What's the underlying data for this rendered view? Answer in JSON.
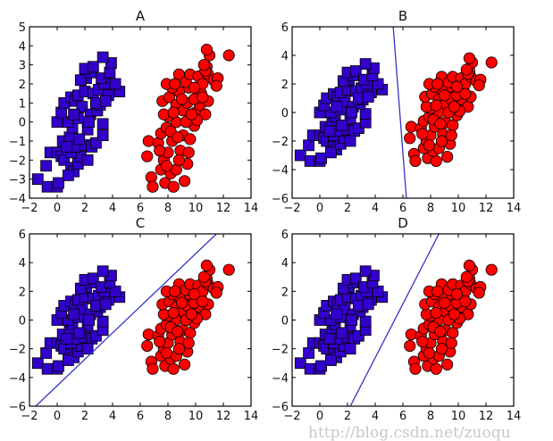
{
  "watermark": "http://blog.csdn.net/zuoqu",
  "colors": {
    "class1": "#3300cc",
    "class2": "#ff0000",
    "line": "#3333cc"
  },
  "clusters": {
    "blue_squares": [
      [
        -1.4,
        -3
      ],
      [
        -0.7,
        -3.4
      ],
      [
        0,
        -3.4
      ],
      [
        0.1,
        -3.2
      ],
      [
        -0.8,
        -2.3
      ],
      [
        -0.5,
        -1.6
      ],
      [
        0,
        -1.6
      ],
      [
        0.3,
        -1.8
      ],
      [
        0.5,
        -2
      ],
      [
        1,
        -2.4
      ],
      [
        1.2,
        -2.6
      ],
      [
        0.8,
        -2.8
      ],
      [
        1.5,
        -2.2
      ],
      [
        1.7,
        -1.8
      ],
      [
        1,
        -1.6
      ],
      [
        0.4,
        -1.0
      ],
      [
        0.9,
        -0.8
      ],
      [
        1.3,
        -1.3
      ],
      [
        2,
        -1.2
      ],
      [
        2.5,
        -1.3
      ],
      [
        2.8,
        -1.1
      ],
      [
        1.1,
        -0.3
      ],
      [
        0,
        0
      ],
      [
        0.8,
        0
      ],
      [
        1.5,
        0.2
      ],
      [
        2.2,
        -0.4
      ],
      [
        3.3,
        -0.7
      ],
      [
        3.3,
        -0.1
      ],
      [
        0.3,
        0.5
      ],
      [
        0.5,
        1.0
      ],
      [
        1.0,
        1.3
      ],
      [
        1.3,
        1.1
      ],
      [
        1.8,
        0.8
      ],
      [
        2.4,
        0.4
      ],
      [
        2.9,
        0.6
      ],
      [
        3.1,
        0.9
      ],
      [
        1.5,
        1.4
      ],
      [
        2.0,
        1.6
      ],
      [
        2.6,
        1.5
      ],
      [
        3.0,
        1.7
      ],
      [
        3.7,
        1.4
      ],
      [
        4.5,
        1.6
      ],
      [
        4.2,
        2.0
      ],
      [
        3.4,
        2.0
      ],
      [
        2.1,
        2.3
      ],
      [
        1.7,
        2.2
      ],
      [
        2.4,
        2.6
      ],
      [
        2.0,
        2.8
      ],
      [
        2.6,
        2.9
      ],
      [
        3.2,
        2.3
      ],
      [
        3.8,
        2.6
      ],
      [
        3.9,
        3.1
      ],
      [
        3.3,
        3.4
      ],
      [
        2.8,
        1.0
      ],
      [
        1.6,
        -0.9
      ],
      [
        0.7,
        -1.3
      ],
      [
        2.3,
        0.0
      ],
      [
        1.2,
        0.4
      ],
      [
        3.5,
        1.1
      ],
      [
        2.2,
        -2.0
      ]
    ],
    "red_circles": [
      [
        6.6,
        -1
      ],
      [
        6.5,
        -1.8
      ],
      [
        6.8,
        -2.9
      ],
      [
        6.9,
        -3.4
      ],
      [
        7.5,
        -2.5
      ],
      [
        7.8,
        -3.2
      ],
      [
        8.4,
        -3.4
      ],
      [
        8.2,
        -2.7
      ],
      [
        9.2,
        -3.1
      ],
      [
        8.6,
        -2.5
      ],
      [
        7.7,
        -2.0
      ],
      [
        8.0,
        -1.6
      ],
      [
        7.3,
        -1.1
      ],
      [
        7.5,
        -0.6
      ],
      [
        7.9,
        -0.3
      ],
      [
        8.3,
        -1.0
      ],
      [
        8.9,
        -1.5
      ],
      [
        9.4,
        -2.2
      ],
      [
        9.1,
        -0.7
      ],
      [
        9.6,
        -0.9
      ],
      [
        9.9,
        -0.2
      ],
      [
        8.6,
        0.0
      ],
      [
        8.0,
        0.3
      ],
      [
        7.7,
        0.4
      ],
      [
        7.6,
        1.1
      ],
      [
        8.1,
        1.3
      ],
      [
        8.6,
        0.9
      ],
      [
        9.1,
        0.6
      ],
      [
        9.4,
        1.0
      ],
      [
        10.0,
        0.5
      ],
      [
        10.3,
        0.9
      ],
      [
        10.7,
        0.4
      ],
      [
        10.9,
        1.1
      ],
      [
        10.4,
        1.5
      ],
      [
        9.9,
        1.2
      ],
      [
        9.5,
        1.8
      ],
      [
        8.8,
        1.6
      ],
      [
        8.3,
        1.8
      ],
      [
        7.9,
        2.0
      ],
      [
        8.8,
        2.5
      ],
      [
        9.3,
        2.1
      ],
      [
        9.6,
        2.5
      ],
      [
        10.2,
        2.4
      ],
      [
        10.5,
        2.0
      ],
      [
        10.9,
        2.5
      ],
      [
        10.8,
        2.9
      ],
      [
        11.3,
        2.2
      ],
      [
        11.6,
        2.3
      ],
      [
        11.5,
        1.9
      ],
      [
        10.7,
        2.7
      ],
      [
        11.0,
        3.5
      ],
      [
        10.8,
        3.8
      ],
      [
        12.4,
        3.5
      ],
      [
        10.6,
        3.0
      ],
      [
        9.9,
        1.8
      ],
      [
        9.0,
        1.2
      ],
      [
        8.4,
        0.5
      ],
      [
        8.2,
        -0.5
      ],
      [
        9.3,
        0.0
      ],
      [
        8.7,
        -0.8
      ],
      [
        7.9,
        -2.3
      ],
      [
        8.8,
        -2.0
      ],
      [
        9.5,
        -1.6
      ],
      [
        10.1,
        0.1
      ],
      [
        7.4,
        -1.5
      ],
      [
        8.5,
        2.0
      ],
      [
        9.7,
        0.4
      ],
      [
        10.5,
        1.3
      ]
    ]
  },
  "chart_data": [
    {
      "type": "scatter",
      "title": "A",
      "xlim": [
        -2,
        14
      ],
      "ylim": [
        -4,
        5
      ],
      "xticks": [
        "−2",
        "0",
        "2",
        "4",
        "6",
        "8",
        "10",
        "12",
        "14"
      ],
      "yticks": [
        "−4",
        "−3",
        "−2",
        "−1",
        "0",
        "1",
        "2",
        "3",
        "4",
        "5"
      ],
      "xtick_values": [
        -2,
        0,
        2,
        4,
        6,
        8,
        10,
        12,
        14
      ],
      "ytick_values": [
        -4,
        -3,
        -2,
        -1,
        0,
        1,
        2,
        3,
        4,
        5
      ],
      "line": null
    },
    {
      "type": "scatter",
      "title": "B",
      "xlim": [
        -2,
        14
      ],
      "ylim": [
        -6,
        6
      ],
      "xticks": [
        "−2",
        "0",
        "2",
        "4",
        "6",
        "8",
        "10",
        "12",
        "14"
      ],
      "yticks": [
        "−6",
        "−4",
        "−2",
        "0",
        "2",
        "4",
        "6"
      ],
      "xtick_values": [
        -2,
        0,
        2,
        4,
        6,
        8,
        10,
        12,
        14
      ],
      "ytick_values": [
        -6,
        -4,
        -2,
        0,
        2,
        4,
        6
      ],
      "line": [
        [
          5.3,
          6
        ],
        [
          6.25,
          -6
        ]
      ]
    },
    {
      "type": "scatter",
      "title": "C",
      "xlim": [
        -2,
        14
      ],
      "ylim": [
        -6,
        6
      ],
      "xticks": [
        "−2",
        "0",
        "2",
        "4",
        "6",
        "8",
        "10",
        "12",
        "14"
      ],
      "yticks": [
        "−6",
        "−4",
        "−2",
        "0",
        "2",
        "4",
        "6"
      ],
      "xtick_values": [
        -2,
        0,
        2,
        4,
        6,
        8,
        10,
        12,
        14
      ],
      "ytick_values": [
        -6,
        -4,
        -2,
        0,
        2,
        4,
        6
      ],
      "line": [
        [
          -1.55,
          -6
        ],
        [
          11.5,
          6
        ]
      ]
    },
    {
      "type": "scatter",
      "title": "D",
      "xlim": [
        -2,
        14
      ],
      "ylim": [
        -6,
        6
      ],
      "xticks": [
        "−2",
        "0",
        "2",
        "4",
        "6",
        "8",
        "10",
        "12",
        "14"
      ],
      "yticks": [
        "−6",
        "−4",
        "−2",
        "0",
        "2",
        "4",
        "6"
      ],
      "xtick_values": [
        -2,
        0,
        2,
        4,
        6,
        8,
        10,
        12,
        14
      ],
      "ytick_values": [
        -6,
        -4,
        -2,
        0,
        2,
        4,
        6
      ],
      "line": [
        [
          2.2,
          -6
        ],
        [
          8.6,
          6
        ]
      ]
    }
  ]
}
